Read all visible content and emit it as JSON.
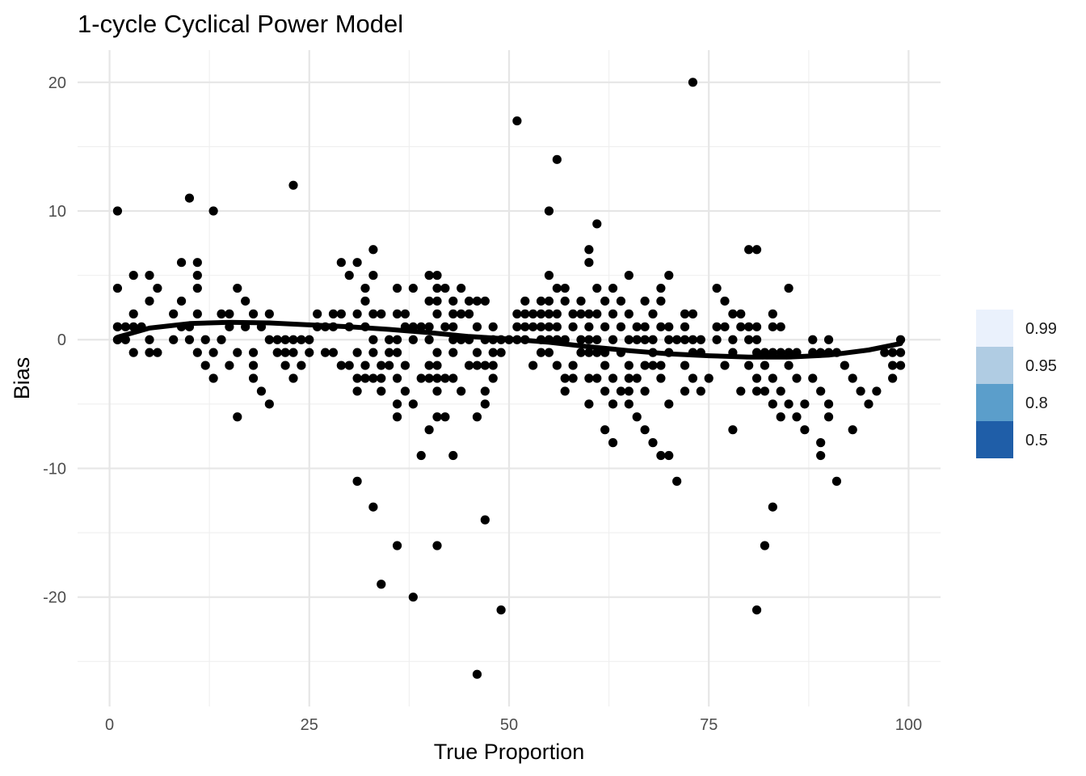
{
  "chart_data": {
    "type": "scatter",
    "title": "1-cycle Cyclical Power Model",
    "xlabel": "True Proportion",
    "ylabel": "Bias",
    "xlim": [
      -4,
      104
    ],
    "ylim": [
      -28.5,
      22.5
    ],
    "x_ticks": [
      0,
      25,
      50,
      75,
      100
    ],
    "y_ticks": [
      -20,
      -10,
      0,
      10,
      20
    ],
    "x_tick_labels": [
      "0",
      "25",
      "50",
      "75",
      "100"
    ],
    "y_tick_labels": [
      "-20",
      "-10",
      "0",
      "10",
      "20"
    ],
    "grid": true,
    "point_color": "#000000",
    "legend": {
      "position": "right",
      "entries": [
        {
          "label": "0.99",
          "color": "#eaf1fc"
        },
        {
          "label": "0.95",
          "color": "#b0cce3"
        },
        {
          "label": "0.8",
          "color": "#5b9ecb"
        },
        {
          "label": "0.5",
          "color": "#1f5ea8"
        }
      ]
    },
    "trend_line": {
      "x": [
        1,
        5,
        10,
        15,
        20,
        25,
        30,
        35,
        40,
        45,
        50,
        55,
        60,
        65,
        70,
        75,
        80,
        85,
        90,
        95,
        99
      ],
      "y": [
        0.2,
        0.9,
        1.25,
        1.35,
        1.3,
        1.15,
        1.0,
        0.8,
        0.55,
        0.25,
        0.05,
        -0.2,
        -0.55,
        -0.85,
        -1.1,
        -1.25,
        -1.35,
        -1.35,
        -1.2,
        -0.8,
        -0.3
      ]
    },
    "points": [
      [
        1,
        10
      ],
      [
        1,
        4
      ],
      [
        1,
        1
      ],
      [
        1,
        0
      ],
      [
        1,
        1
      ],
      [
        1,
        0
      ],
      [
        2,
        1
      ],
      [
        2,
        0
      ],
      [
        3,
        5
      ],
      [
        3,
        2
      ],
      [
        3,
        1
      ],
      [
        3,
        -1
      ],
      [
        4,
        1
      ],
      [
        5,
        5
      ],
      [
        5,
        3
      ],
      [
        5,
        0
      ],
      [
        5,
        -1
      ],
      [
        6,
        4
      ],
      [
        6,
        -1
      ],
      [
        8,
        2
      ],
      [
        8,
        0
      ],
      [
        9,
        6
      ],
      [
        9,
        3
      ],
      [
        9,
        1
      ],
      [
        10,
        11
      ],
      [
        10,
        1
      ],
      [
        10,
        0
      ],
      [
        11,
        6
      ],
      [
        11,
        5
      ],
      [
        11,
        4
      ],
      [
        11,
        2
      ],
      [
        11,
        -1
      ],
      [
        12,
        0
      ],
      [
        12,
        -2
      ],
      [
        13,
        10
      ],
      [
        13,
        -1
      ],
      [
        13,
        -3
      ],
      [
        14,
        2
      ],
      [
        14,
        0
      ],
      [
        15,
        2
      ],
      [
        15,
        1
      ],
      [
        15,
        -2
      ],
      [
        16,
        4
      ],
      [
        16,
        -1
      ],
      [
        16,
        -6
      ],
      [
        17,
        3
      ],
      [
        17,
        1
      ],
      [
        18,
        2
      ],
      [
        18,
        -1
      ],
      [
        18,
        -2
      ],
      [
        18,
        -3
      ],
      [
        19,
        1
      ],
      [
        19,
        -4
      ],
      [
        20,
        2
      ],
      [
        20,
        0
      ],
      [
        20,
        -5
      ],
      [
        21,
        0
      ],
      [
        21,
        -1
      ],
      [
        22,
        0
      ],
      [
        22,
        -1
      ],
      [
        22,
        -2
      ],
      [
        23,
        12
      ],
      [
        23,
        0
      ],
      [
        23,
        -1
      ],
      [
        23,
        -3
      ],
      [
        24,
        0
      ],
      [
        24,
        -2
      ],
      [
        25,
        0
      ],
      [
        25,
        -1
      ],
      [
        26,
        2
      ],
      [
        26,
        1
      ],
      [
        27,
        1
      ],
      [
        27,
        -1
      ],
      [
        28,
        2
      ],
      [
        28,
        1
      ],
      [
        28,
        -1
      ],
      [
        29,
        6
      ],
      [
        29,
        2
      ],
      [
        29,
        -2
      ],
      [
        30,
        5
      ],
      [
        30,
        1
      ],
      [
        30,
        -2
      ],
      [
        31,
        6
      ],
      [
        31,
        2
      ],
      [
        31,
        -1
      ],
      [
        31,
        -3
      ],
      [
        31,
        -4
      ],
      [
        31,
        -11
      ],
      [
        32,
        4
      ],
      [
        32,
        3
      ],
      [
        32,
        1
      ],
      [
        32,
        -2
      ],
      [
        32,
        -3
      ],
      [
        33,
        7
      ],
      [
        33,
        5
      ],
      [
        33,
        2
      ],
      [
        33,
        0
      ],
      [
        33,
        -1
      ],
      [
        33,
        -3
      ],
      [
        33,
        -13
      ],
      [
        34,
        2
      ],
      [
        34,
        -2
      ],
      [
        34,
        -3
      ],
      [
        34,
        -4
      ],
      [
        34,
        -19
      ],
      [
        35,
        0
      ],
      [
        35,
        -1
      ],
      [
        35,
        -2
      ],
      [
        36,
        4
      ],
      [
        36,
        2
      ],
      [
        36,
        0
      ],
      [
        36,
        -1
      ],
      [
        36,
        -3
      ],
      [
        36,
        -5
      ],
      [
        36,
        -6
      ],
      [
        36,
        -16
      ],
      [
        37,
        2
      ],
      [
        37,
        1
      ],
      [
        37,
        -2
      ],
      [
        37,
        -4
      ],
      [
        38,
        4
      ],
      [
        38,
        1
      ],
      [
        38,
        0
      ],
      [
        38,
        -5
      ],
      [
        38,
        -20
      ],
      [
        39,
        1
      ],
      [
        39,
        -3
      ],
      [
        39,
        -9
      ],
      [
        40,
        5
      ],
      [
        40,
        3
      ],
      [
        40,
        1
      ],
      [
        40,
        0
      ],
      [
        40,
        -2
      ],
      [
        40,
        -3
      ],
      [
        40,
        -7
      ],
      [
        41,
        5
      ],
      [
        41,
        4
      ],
      [
        41,
        3
      ],
      [
        41,
        2
      ],
      [
        41,
        -1
      ],
      [
        41,
        -2
      ],
      [
        41,
        -3
      ],
      [
        41,
        -4
      ],
      [
        41,
        -6
      ],
      [
        41,
        -16
      ],
      [
        42,
        4
      ],
      [
        42,
        1
      ],
      [
        42,
        -3
      ],
      [
        42,
        -6
      ],
      [
        43,
        3
      ],
      [
        43,
        2
      ],
      [
        43,
        1
      ],
      [
        43,
        0
      ],
      [
        43,
        -1
      ],
      [
        43,
        -3
      ],
      [
        43,
        -9
      ],
      [
        44,
        4
      ],
      [
        44,
        2
      ],
      [
        44,
        0
      ],
      [
        44,
        -4
      ],
      [
        45,
        3
      ],
      [
        45,
        2
      ],
      [
        45,
        0
      ],
      [
        45,
        -2
      ],
      [
        46,
        3
      ],
      [
        46,
        1
      ],
      [
        46,
        -1
      ],
      [
        46,
        -2
      ],
      [
        46,
        -6
      ],
      [
        46,
        -26
      ],
      [
        47,
        3
      ],
      [
        47,
        0
      ],
      [
        47,
        -2
      ],
      [
        47,
        -4
      ],
      [
        47,
        -5
      ],
      [
        47,
        -14
      ],
      [
        48,
        1
      ],
      [
        48,
        0
      ],
      [
        48,
        -1
      ],
      [
        48,
        -2
      ],
      [
        48,
        -3
      ],
      [
        49,
        0
      ],
      [
        49,
        -1
      ],
      [
        49,
        -21
      ],
      [
        50,
        0
      ],
      [
        51,
        17
      ],
      [
        51,
        2
      ],
      [
        51,
        1
      ],
      [
        51,
        0
      ],
      [
        52,
        3
      ],
      [
        52,
        2
      ],
      [
        52,
        1
      ],
      [
        52,
        0
      ],
      [
        53,
        2
      ],
      [
        53,
        1
      ],
      [
        53,
        -2
      ],
      [
        54,
        3
      ],
      [
        54,
        2
      ],
      [
        54,
        1
      ],
      [
        54,
        0
      ],
      [
        54,
        -1
      ],
      [
        55,
        10
      ],
      [
        55,
        5
      ],
      [
        55,
        3
      ],
      [
        55,
        2
      ],
      [
        55,
        1
      ],
      [
        55,
        0
      ],
      [
        55,
        -1
      ],
      [
        56,
        14
      ],
      [
        56,
        4
      ],
      [
        56,
        2
      ],
      [
        56,
        1
      ],
      [
        56,
        0
      ],
      [
        56,
        -2
      ],
      [
        57,
        4
      ],
      [
        57,
        3
      ],
      [
        57,
        0
      ],
      [
        57,
        -3
      ],
      [
        57,
        -4
      ],
      [
        58,
        2
      ],
      [
        58,
        1
      ],
      [
        58,
        -2
      ],
      [
        58,
        -3
      ],
      [
        59,
        3
      ],
      [
        59,
        2
      ],
      [
        59,
        0
      ],
      [
        59,
        -1
      ],
      [
        60,
        7
      ],
      [
        60,
        6
      ],
      [
        60,
        2
      ],
      [
        60,
        1
      ],
      [
        60,
        0
      ],
      [
        60,
        -1
      ],
      [
        60,
        -3
      ],
      [
        60,
        -5
      ],
      [
        61,
        9
      ],
      [
        61,
        4
      ],
      [
        61,
        2
      ],
      [
        61,
        0
      ],
      [
        61,
        -1
      ],
      [
        61,
        -3
      ],
      [
        62,
        3
      ],
      [
        62,
        1
      ],
      [
        62,
        -1
      ],
      [
        62,
        -2
      ],
      [
        62,
        -4
      ],
      [
        62,
        -7
      ],
      [
        63,
        4
      ],
      [
        63,
        2
      ],
      [
        63,
        0
      ],
      [
        63,
        -3
      ],
      [
        63,
        -5
      ],
      [
        63,
        -8
      ],
      [
        64,
        3
      ],
      [
        64,
        1
      ],
      [
        64,
        -1
      ],
      [
        64,
        -4
      ],
      [
        65,
        5
      ],
      [
        65,
        2
      ],
      [
        65,
        0
      ],
      [
        65,
        -2
      ],
      [
        65,
        -3
      ],
      [
        65,
        -4
      ],
      [
        65,
        -5
      ],
      [
        66,
        1
      ],
      [
        66,
        0
      ],
      [
        66,
        -3
      ],
      [
        66,
        -6
      ],
      [
        67,
        3
      ],
      [
        67,
        1
      ],
      [
        67,
        0
      ],
      [
        67,
        -2
      ],
      [
        67,
        -4
      ],
      [
        67,
        -7
      ],
      [
        68,
        2
      ],
      [
        68,
        0
      ],
      [
        68,
        -1
      ],
      [
        68,
        -2
      ],
      [
        68,
        -8
      ],
      [
        69,
        4
      ],
      [
        69,
        3
      ],
      [
        69,
        1
      ],
      [
        69,
        -2
      ],
      [
        69,
        -3
      ],
      [
        69,
        -9
      ],
      [
        70,
        5
      ],
      [
        70,
        1
      ],
      [
        70,
        0
      ],
      [
        70,
        -1
      ],
      [
        70,
        -5
      ],
      [
        70,
        -9
      ],
      [
        71,
        0
      ],
      [
        71,
        -11
      ],
      [
        72,
        2
      ],
      [
        72,
        1
      ],
      [
        72,
        0
      ],
      [
        72,
        -2
      ],
      [
        72,
        -4
      ],
      [
        73,
        20
      ],
      [
        73,
        2
      ],
      [
        73,
        0
      ],
      [
        73,
        -1
      ],
      [
        73,
        -3
      ],
      [
        74,
        0
      ],
      [
        74,
        -1
      ],
      [
        74,
        -4
      ],
      [
        75,
        -3
      ],
      [
        76,
        4
      ],
      [
        76,
        1
      ],
      [
        76,
        0
      ],
      [
        77,
        3
      ],
      [
        77,
        1
      ],
      [
        77,
        -2
      ],
      [
        78,
        2
      ],
      [
        78,
        0
      ],
      [
        78,
        -1
      ],
      [
        78,
        -7
      ],
      [
        79,
        2
      ],
      [
        79,
        1
      ],
      [
        79,
        -4
      ],
      [
        80,
        7
      ],
      [
        80,
        1
      ],
      [
        80,
        0
      ],
      [
        80,
        -2
      ],
      [
        81,
        7
      ],
      [
        81,
        1
      ],
      [
        81,
        0
      ],
      [
        81,
        -1
      ],
      [
        81,
        -3
      ],
      [
        81,
        -4
      ],
      [
        81,
        -21
      ],
      [
        82,
        -1
      ],
      [
        82,
        -2
      ],
      [
        82,
        -4
      ],
      [
        82,
        -16
      ],
      [
        83,
        2
      ],
      [
        83,
        1
      ],
      [
        83,
        -1
      ],
      [
        83,
        -3
      ],
      [
        83,
        -5
      ],
      [
        83,
        -13
      ],
      [
        84,
        1
      ],
      [
        84,
        -1
      ],
      [
        84,
        -4
      ],
      [
        84,
        -6
      ],
      [
        85,
        4
      ],
      [
        85,
        -1
      ],
      [
        85,
        -2
      ],
      [
        85,
        -5
      ],
      [
        86,
        -1
      ],
      [
        86,
        -3
      ],
      [
        86,
        -6
      ],
      [
        87,
        -5
      ],
      [
        87,
        -7
      ],
      [
        88,
        0
      ],
      [
        88,
        -1
      ],
      [
        88,
        -3
      ],
      [
        89,
        -1
      ],
      [
        89,
        -4
      ],
      [
        89,
        -8
      ],
      [
        89,
        -9
      ],
      [
        90,
        0
      ],
      [
        90,
        -1
      ],
      [
        90,
        -5
      ],
      [
        90,
        -6
      ],
      [
        91,
        -1
      ],
      [
        91,
        -11
      ],
      [
        92,
        -2
      ],
      [
        93,
        -3
      ],
      [
        93,
        -7
      ],
      [
        94,
        -4
      ],
      [
        95,
        -5
      ],
      [
        96,
        -4
      ],
      [
        97,
        -1
      ],
      [
        98,
        -1
      ],
      [
        98,
        -2
      ],
      [
        98,
        -3
      ],
      [
        99,
        0
      ],
      [
        99,
        -1
      ],
      [
        99,
        -2
      ]
    ]
  }
}
